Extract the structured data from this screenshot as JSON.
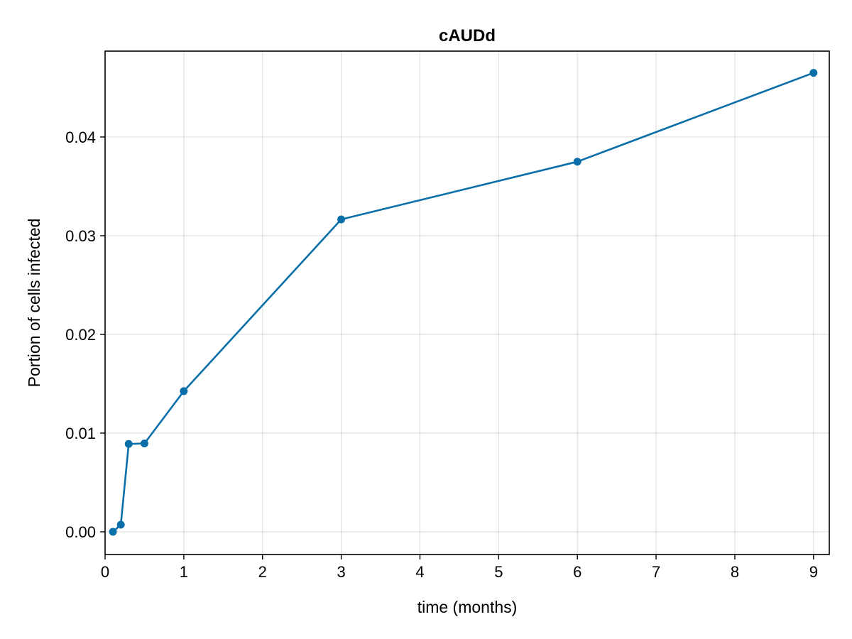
{
  "chart_data": {
    "type": "line",
    "title": "cAUDd",
    "xlabel": "time (months)",
    "ylabel": "Portion of cells infected",
    "xlim": [
      0,
      9.2
    ],
    "ylim": [
      -0.0023,
      0.0487
    ],
    "xticks": [
      0,
      1,
      2,
      3,
      4,
      5,
      6,
      7,
      8,
      9
    ],
    "xtick_labels": [
      "0",
      "1",
      "2",
      "3",
      "4",
      "5",
      "6",
      "7",
      "8",
      "9"
    ],
    "yticks": [
      0.0,
      0.01,
      0.02,
      0.03,
      0.04
    ],
    "ytick_labels": [
      "0.00",
      "0.01",
      "0.02",
      "0.03",
      "0.04"
    ],
    "grid": true,
    "series": [
      {
        "color": "#0a6fa8",
        "marker": "circle",
        "x": [
          0.1,
          0.2,
          0.3,
          0.5,
          1,
          3,
          6,
          9
        ],
        "y": [
          0.0,
          0.00072,
          0.0089,
          0.00895,
          0.01425,
          0.03165,
          0.0375,
          0.0465
        ]
      }
    ]
  }
}
